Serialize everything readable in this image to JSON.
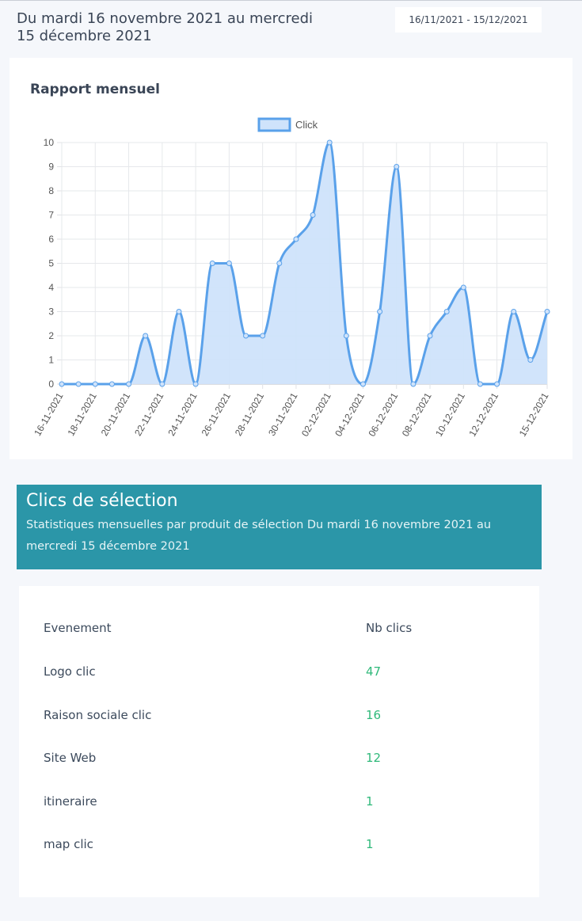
{
  "header": {
    "title": "Du mardi 16 novembre 2021 au mercredi 15 décembre 2021",
    "date_range": "16/11/2021 - 15/12/2021"
  },
  "chart_card": {
    "title": "Rapport mensuel"
  },
  "chart_data": {
    "type": "area",
    "title": "Rapport mensuel",
    "series": [
      {
        "name": "Click",
        "values": [
          0,
          0,
          0,
          0,
          0,
          2,
          0,
          3,
          0,
          5,
          5,
          2,
          2,
          5,
          6,
          7,
          10,
          2,
          0,
          3,
          9,
          0,
          2,
          3,
          4,
          0,
          0,
          3,
          1,
          3
        ]
      }
    ],
    "x_tick_labels": [
      "16-11-2021",
      "18-11-2021",
      "20-11-2021",
      "22-11-2021",
      "24-11-2021",
      "26-11-2021",
      "28-11-2021",
      "30-11-2021",
      "02-12-2021",
      "04-12-2021",
      "06-12-2021",
      "08-12-2021",
      "10-12-2021",
      "12-12-2021",
      "15-12-2021"
    ],
    "ylim": [
      0,
      10
    ],
    "y_ticks": [
      0,
      1,
      2,
      3,
      4,
      5,
      6,
      7,
      8,
      9,
      10
    ],
    "grid": true,
    "legend": "top",
    "colors": {
      "line": "#5aa1ea",
      "fill": "#cfe3fb"
    }
  },
  "selection": {
    "title": "Clics de sélection",
    "subtitle": "Statistiques mensuelles par produit de sélection Du mardi 16 novembre 2021 au mercredi 15 décembre 2021"
  },
  "table": {
    "headers": [
      "Evenement",
      "Nb clics"
    ],
    "rows": [
      [
        "Logo clic",
        "47"
      ],
      [
        "Raison sociale clic",
        "16"
      ],
      [
        "Site Web",
        "12"
      ],
      [
        "itineraire",
        "1"
      ],
      [
        "map clic",
        "1"
      ]
    ]
  }
}
